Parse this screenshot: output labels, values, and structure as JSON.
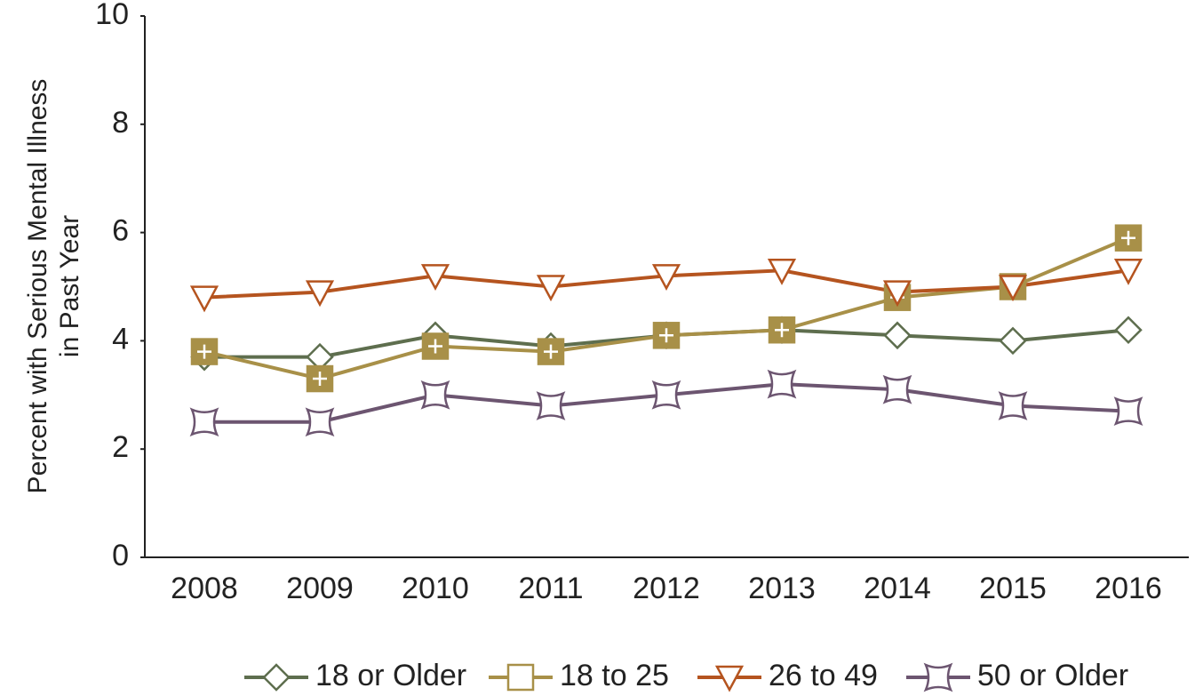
{
  "chart_data": {
    "type": "line",
    "ylabel": [
      "Percent with Serious Mental Illness",
      "in Past Year"
    ],
    "categories": [
      "2008",
      "2009",
      "2010",
      "2011",
      "2012",
      "2013",
      "2014",
      "2015",
      "2016"
    ],
    "series": [
      {
        "name": "18 or Older",
        "color": "#5e6e4e",
        "marker": "diamond",
        "values": [
          3.7,
          3.7,
          4.1,
          3.9,
          4.1,
          4.2,
          4.1,
          4.0,
          4.2
        ]
      },
      {
        "name": "18 to 25",
        "color": "#a89048",
        "marker": "square",
        "filled": true,
        "values": [
          3.8,
          3.3,
          3.9,
          3.8,
          4.1,
          4.2,
          4.8,
          5.0,
          5.9
        ]
      },
      {
        "name": "26 to 49",
        "color": "#b5541f",
        "marker": "triangle",
        "values": [
          4.8,
          4.9,
          5.2,
          5.0,
          5.2,
          5.3,
          4.9,
          5.0,
          5.3
        ]
      },
      {
        "name": "50 or Older",
        "color": "#6c5570",
        "marker": "concave",
        "values": [
          2.5,
          2.5,
          3.0,
          2.8,
          3.0,
          3.2,
          3.1,
          2.8,
          2.7
        ]
      }
    ],
    "ylim": [
      0,
      10
    ],
    "yticks": [
      0,
      2,
      4,
      6,
      8,
      10
    ],
    "grid": false,
    "legend": "bottom"
  }
}
